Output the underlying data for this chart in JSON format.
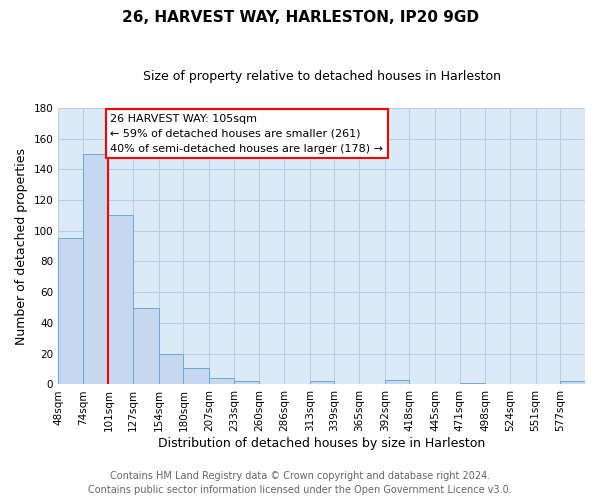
{
  "title": "26, HARVEST WAY, HARLESTON, IP20 9GD",
  "subtitle": "Size of property relative to detached houses in Harleston",
  "xlabel": "Distribution of detached houses by size in Harleston",
  "ylabel": "Number of detached properties",
  "bar_labels": [
    "48sqm",
    "74sqm",
    "101sqm",
    "127sqm",
    "154sqm",
    "180sqm",
    "207sqm",
    "233sqm",
    "260sqm",
    "286sqm",
    "313sqm",
    "339sqm",
    "365sqm",
    "392sqm",
    "418sqm",
    "445sqm",
    "471sqm",
    "498sqm",
    "524sqm",
    "551sqm",
    "577sqm"
  ],
  "bar_values": [
    95,
    150,
    110,
    50,
    20,
    11,
    4,
    2,
    0,
    0,
    2,
    0,
    0,
    3,
    0,
    0,
    1,
    0,
    0,
    0,
    2
  ],
  "bin_edges": [
    48,
    74,
    101,
    127,
    154,
    180,
    207,
    233,
    260,
    286,
    313,
    339,
    365,
    392,
    418,
    445,
    471,
    498,
    524,
    551,
    577,
    603
  ],
  "bar_color": "#c5d8f0",
  "bar_edgecolor": "#6aaad4",
  "red_line_x": 101,
  "annotation_box_text": "26 HARVEST WAY: 105sqm\n← 59% of detached houses are smaller (261)\n40% of semi-detached houses are larger (178) →",
  "ylim": [
    0,
    180
  ],
  "yticks": [
    0,
    20,
    40,
    60,
    80,
    100,
    120,
    140,
    160,
    180
  ],
  "footer_line1": "Contains HM Land Registry data © Crown copyright and database right 2024.",
  "footer_line2": "Contains public sector information licensed under the Open Government Licence v3.0.",
  "fig_background": "#ffffff",
  "plot_background": "#dce9f7",
  "grid_color": "#b8cfe8",
  "title_fontsize": 11,
  "subtitle_fontsize": 9,
  "axis_label_fontsize": 9,
  "tick_fontsize": 7.5,
  "footer_fontsize": 7,
  "annotation_fontsize": 8
}
